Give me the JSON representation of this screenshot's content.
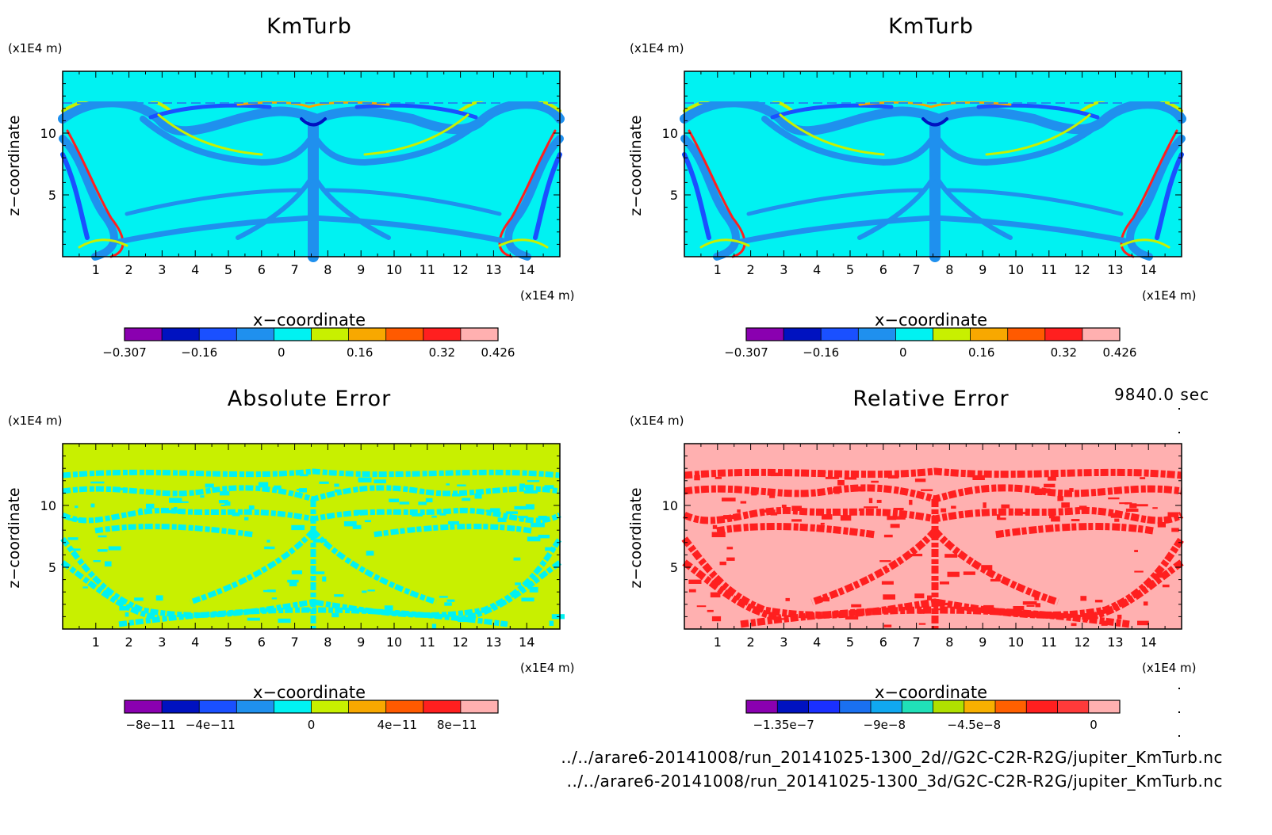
{
  "panels": [
    {
      "title": "KmTurb",
      "z_unit": "(x1E4 m)",
      "x_unit": "(x1E4 m)",
      "xlabel": "x−coordinate",
      "ylabel": "z−coordinate",
      "x_ticks": [
        "1",
        "2",
        "3",
        "4",
        "5",
        "6",
        "7",
        "8",
        "9",
        "10",
        "11",
        "12",
        "13",
        "14"
      ],
      "z_ticks": [
        "5",
        "10"
      ],
      "colorbar_colors": [
        "#8a00b0",
        "#0012c0",
        "#1a50ff",
        "#1f90ee",
        "#00f2f2",
        "#c8f000",
        "#f8a800",
        "#ff5a00",
        "#ff1f1f",
        "#ffb0b0"
      ],
      "colorbar_labels": [
        "−0.307",
        "−0.16",
        "0",
        "0.16",
        "0.32",
        "0.426"
      ]
    },
    {
      "title": "KmTurb",
      "z_unit": "(x1E4 m)",
      "x_unit": "(x1E4 m)",
      "xlabel": "x−coordinate",
      "ylabel": "z−coordinate",
      "x_ticks": [
        "1",
        "2",
        "3",
        "4",
        "5",
        "6",
        "7",
        "8",
        "9",
        "10",
        "11",
        "12",
        "13",
        "14"
      ],
      "z_ticks": [
        "5",
        "10"
      ],
      "colorbar_colors": [
        "#8a00b0",
        "#0012c0",
        "#1a50ff",
        "#1f90ee",
        "#00f2f2",
        "#c8f000",
        "#f8a800",
        "#ff5a00",
        "#ff1f1f",
        "#ffb0b0"
      ],
      "colorbar_labels": [
        "−0.307",
        "−0.16",
        "0",
        "0.16",
        "0.32",
        "0.426"
      ]
    },
    {
      "title": "Absolute Error",
      "z_unit": "(x1E4 m)",
      "x_unit": "(x1E4 m)",
      "xlabel": "x−coordinate",
      "ylabel": "z−coordinate",
      "x_ticks": [
        "1",
        "2",
        "3",
        "4",
        "5",
        "6",
        "7",
        "8",
        "9",
        "10",
        "11",
        "12",
        "13",
        "14"
      ],
      "z_ticks": [
        "5",
        "10"
      ],
      "colorbar_colors": [
        "#8a00b0",
        "#0012c0",
        "#1a50ff",
        "#1f90ee",
        "#00f2f2",
        "#c8f000",
        "#f8a800",
        "#ff5a00",
        "#ff1f1f",
        "#ffb0b0"
      ],
      "colorbar_labels": [
        "−8e−11",
        "−4e−11",
        "0",
        "4e−11",
        "8e−11"
      ]
    },
    {
      "title": "Relative Error",
      "z_unit": "(x1E4 m)",
      "x_unit": "(x1E4 m)",
      "xlabel": "x−coordinate",
      "ylabel": "z−coordinate",
      "x_ticks": [
        "1",
        "2",
        "3",
        "4",
        "5",
        "6",
        "7",
        "8",
        "9",
        "10",
        "11",
        "12",
        "13",
        "14"
      ],
      "z_ticks": [
        "5",
        "10"
      ],
      "colorbar_colors": [
        "#8a00b0",
        "#0012c0",
        "#1a30ff",
        "#1a70f0",
        "#10a8f0",
        "#20e0b8",
        "#b0e000",
        "#f8b000",
        "#ff6000",
        "#ff1f1f",
        "#ff3a3a",
        "#ffb0b0"
      ],
      "colorbar_labels": [
        "−1.35e−7",
        "−9e−8",
        "−4.5e−8",
        "0"
      ]
    }
  ],
  "time_label": "9840.0 sec",
  "files": [
    "../../arare6-20141008/run_20141025-1300_2d//G2C-C2R-R2G/jupiter_KmTurb.nc",
    "../../arare6-20141008/run_20141025-1300_3d/G2C-C2R-R2G/jupiter_KmTurb.nc"
  ],
  "chart_data": [
    {
      "type": "heatmap",
      "title": "KmTurb",
      "xlabel": "x−coordinate",
      "ylabel": "z−coordinate",
      "x_unit": "(x1E4 m)",
      "z_unit": "(x1E4 m)",
      "xlim": [
        0,
        15
      ],
      "ylim": [
        0,
        15
      ],
      "x_ticks": [
        1,
        2,
        3,
        4,
        5,
        6,
        7,
        8,
        9,
        10,
        11,
        12,
        13,
        14
      ],
      "y_ticks": [
        5,
        10
      ],
      "dominant_value": 0,
      "colorbar": {
        "min": -0.307,
        "max": 0.426,
        "labels": [
          -0.307,
          -0.16,
          0,
          0.16,
          0.32,
          0.426
        ]
      }
    },
    {
      "type": "heatmap",
      "title": "KmTurb",
      "xlabel": "x−coordinate",
      "ylabel": "z−coordinate",
      "x_unit": "(x1E4 m)",
      "z_unit": "(x1E4 m)",
      "xlim": [
        0,
        15
      ],
      "ylim": [
        0,
        15
      ],
      "x_ticks": [
        1,
        2,
        3,
        4,
        5,
        6,
        7,
        8,
        9,
        10,
        11,
        12,
        13,
        14
      ],
      "y_ticks": [
        5,
        10
      ],
      "dominant_value": 0,
      "colorbar": {
        "min": -0.307,
        "max": 0.426,
        "labels": [
          -0.307,
          -0.16,
          0,
          0.16,
          0.32,
          0.426
        ]
      }
    },
    {
      "type": "heatmap",
      "title": "Absolute Error",
      "xlabel": "x−coordinate",
      "ylabel": "z−coordinate",
      "x_unit": "(x1E4 m)",
      "z_unit": "(x1E4 m)",
      "xlim": [
        0,
        15
      ],
      "ylim": [
        0,
        15
      ],
      "x_ticks": [
        1,
        2,
        3,
        4,
        5,
        6,
        7,
        8,
        9,
        10,
        11,
        12,
        13,
        14
      ],
      "y_ticks": [
        5,
        10
      ],
      "colorbar": {
        "min": -1e-10,
        "max": 1e-10,
        "labels": [
          -8e-11,
          -4e-11,
          0,
          4e-11,
          8e-11
        ]
      }
    },
    {
      "type": "heatmap",
      "title": "Relative Error",
      "xlabel": "x−coordinate",
      "ylabel": "z−coordinate",
      "x_unit": "(x1E4 m)",
      "z_unit": "(x1E4 m)",
      "xlim": [
        0,
        15
      ],
      "ylim": [
        0,
        15
      ],
      "x_ticks": [
        1,
        2,
        3,
        4,
        5,
        6,
        7,
        8,
        9,
        10,
        11,
        12,
        13,
        14
      ],
      "y_ticks": [
        5,
        10
      ],
      "colorbar": {
        "min": -1.35e-07,
        "max": 0,
        "labels": [
          -1.35e-07,
          -9e-08,
          -4.5e-08,
          0
        ]
      }
    }
  ]
}
